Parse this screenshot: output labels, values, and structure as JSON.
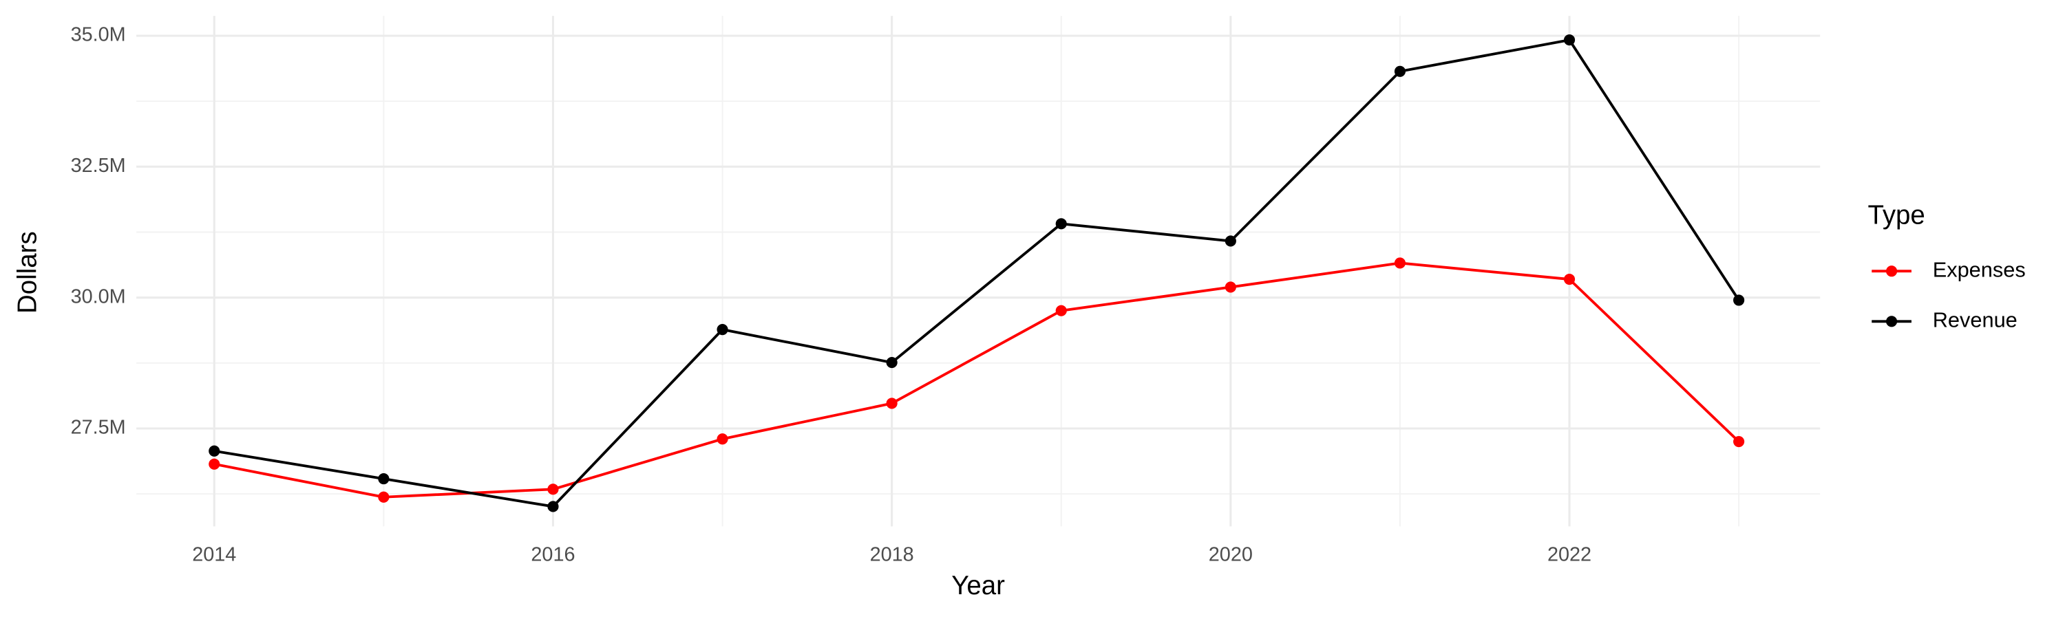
{
  "chart_data": {
    "type": "line",
    "x_label": "Year",
    "y_label": "Dollars",
    "x": [
      2014,
      2015,
      2016,
      2017,
      2018,
      2019,
      2020,
      2021,
      2022,
      2023
    ],
    "series": [
      {
        "name": "Expenses",
        "color": "#ff0000",
        "values": [
          26820000,
          26190000,
          26340000,
          27300000,
          27980000,
          29750000,
          30200000,
          30660000,
          30350000,
          27250000
        ]
      },
      {
        "name": "Revenue",
        "color": "#000000",
        "values": [
          27070000,
          26540000,
          26010000,
          29390000,
          28760000,
          31410000,
          31080000,
          34320000,
          34920000,
          29950000
        ]
      }
    ],
    "xlim": [
      2013.54,
      2023.48
    ],
    "ylim": [
      25630000,
      35380000
    ],
    "xticks": [
      2014,
      2016,
      2018,
      2020,
      2022
    ],
    "yticks": [
      {
        "value": 27500000,
        "label": "27.5M"
      },
      {
        "value": 30000000,
        "label": "30.0M"
      },
      {
        "value": 32500000,
        "label": "32.5M"
      },
      {
        "value": 35000000,
        "label": "35.0M"
      }
    ],
    "minor_xticks": [
      2015,
      2017,
      2019,
      2021,
      2023
    ],
    "minor_yticks": [
      26250000,
      28750000,
      31250000,
      33750000
    ],
    "grid": true,
    "legend_title": "Type",
    "legend_position": "right"
  }
}
